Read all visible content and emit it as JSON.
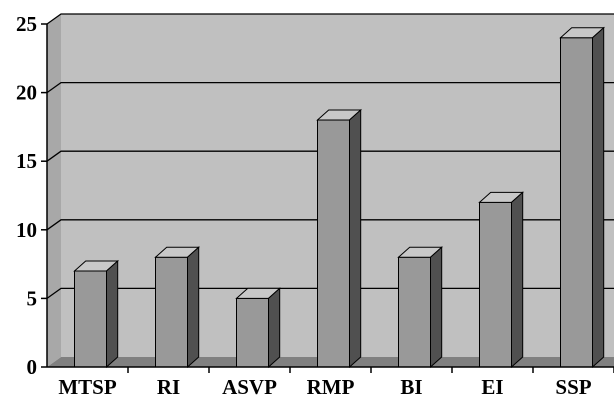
{
  "chart_data": {
    "type": "bar",
    "style": "3d",
    "categories": [
      "MTSP",
      "RI",
      "ASVP",
      "RMP",
      "BI",
      "EI",
      "SSP"
    ],
    "values": [
      7,
      8,
      5,
      18,
      8,
      12,
      24
    ],
    "y_ticks": [
      "0",
      "5",
      "10",
      "15",
      "20",
      "25"
    ],
    "ylim": [
      0,
      25
    ],
    "grid": true,
    "legend": "none",
    "colors": {
      "wall": "#c0c0c0",
      "floor": "#808080",
      "bar_front": "#999999",
      "bar_top": "#c8c8c8",
      "bar_side": "#505050",
      "gridline": "#000000"
    }
  }
}
